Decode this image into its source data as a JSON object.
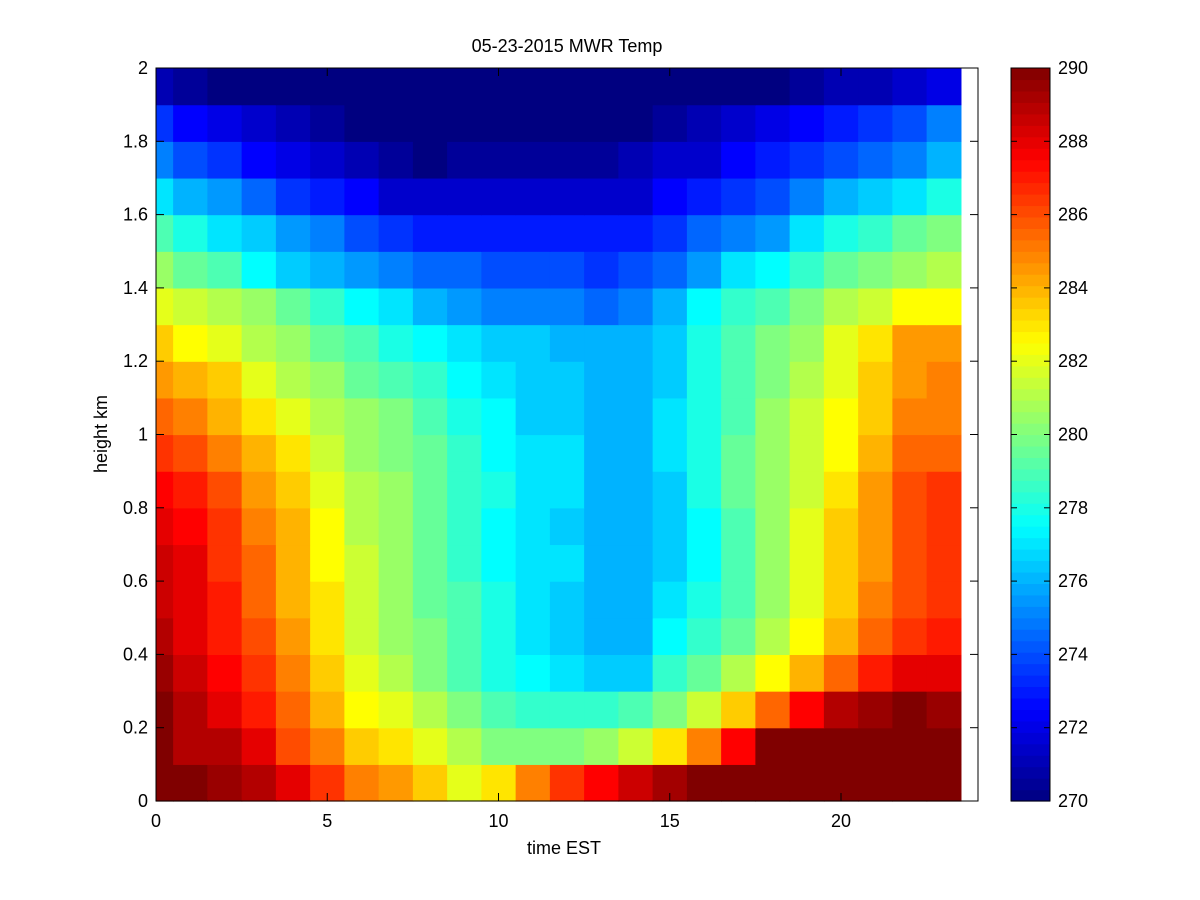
{
  "chart_data": {
    "type": "heatmap",
    "title": "05-23-2015 MWR Temp",
    "xlabel": "time EST",
    "ylabel": "height km",
    "xlim": [
      0,
      24
    ],
    "ylim": [
      0,
      2
    ],
    "x_ticks": [
      "0",
      "5",
      "10",
      "15",
      "20"
    ],
    "y_ticks": [
      "0",
      "0.2",
      "0.4",
      "0.6",
      "0.8",
      "1",
      "1.2",
      "1.4",
      "1.6",
      "1.8",
      "2"
    ],
    "colorbar": {
      "colormap": "jet",
      "range": [
        270,
        290
      ],
      "ticks": [
        "270",
        "272",
        "274",
        "276",
        "278",
        "280",
        "282",
        "284",
        "286",
        "288",
        "290"
      ]
    },
    "x": [
      0,
      1,
      2,
      3,
      4,
      5,
      6,
      7,
      8,
      9,
      10,
      11,
      12,
      13,
      14,
      15,
      16,
      17,
      18,
      19,
      20,
      21,
      22,
      23
    ],
    "y": [
      0.05,
      0.15,
      0.25,
      0.35,
      0.45,
      0.55,
      0.65,
      0.75,
      0.85,
      0.95,
      1.05,
      1.15,
      1.25,
      1.35,
      1.45,
      1.55,
      1.65,
      1.75,
      1.85,
      1.95
    ],
    "z": [
      [
        290,
        290,
        289.5,
        289,
        288,
        286.5,
        285,
        284.5,
        283.5,
        282,
        283,
        285,
        286.5,
        287.5,
        288.5,
        289.3,
        290,
        290,
        290,
        290,
        290,
        290,
        290,
        290
      ],
      [
        290,
        289,
        289,
        288,
        286,
        285,
        283.5,
        283,
        282,
        281,
        280,
        280,
        280,
        280.5,
        281.5,
        283,
        285,
        287.5,
        290,
        290,
        290,
        290,
        290,
        290
      ],
      [
        290,
        289,
        288,
        287,
        285.5,
        284,
        282.5,
        282,
        281,
        280,
        279,
        278.5,
        278.5,
        278.5,
        279,
        280,
        281.5,
        283.5,
        285.5,
        287.5,
        289,
        289.5,
        290,
        289.5
      ],
      [
        289.5,
        288.5,
        287.5,
        286.5,
        285,
        283.5,
        282,
        281,
        280,
        279,
        278,
        277.5,
        277,
        276.5,
        276.5,
        278.5,
        279.5,
        281,
        282.5,
        284,
        285.5,
        287,
        288,
        288
      ],
      [
        289,
        288,
        287,
        286,
        284.5,
        283,
        281.5,
        280.5,
        280,
        279,
        278,
        277,
        276.5,
        276,
        276,
        277.5,
        278.5,
        279.5,
        281,
        282.5,
        284,
        285.5,
        286.5,
        287
      ],
      [
        288.5,
        288,
        287,
        285.5,
        284,
        283,
        281.5,
        280.5,
        279.5,
        279,
        278,
        277,
        276.5,
        276,
        276,
        277,
        278,
        279,
        280.5,
        282,
        283.5,
        285,
        286,
        286.5
      ],
      [
        288.5,
        288,
        286.5,
        285.5,
        284,
        282.5,
        281.5,
        280.5,
        279.5,
        278.5,
        277.5,
        277,
        277,
        276,
        276,
        276.5,
        277.5,
        279,
        280.5,
        282,
        283.5,
        284.5,
        286,
        286.5
      ],
      [
        288,
        287.5,
        286.5,
        285,
        284,
        282.5,
        281,
        280.5,
        279.5,
        278.5,
        277.5,
        277,
        276.5,
        276,
        276,
        276.5,
        277.5,
        279,
        280.5,
        282,
        283.5,
        284.5,
        286,
        286.5
      ],
      [
        287.5,
        287,
        286,
        284.5,
        283.5,
        282,
        281,
        280.5,
        279.5,
        278.5,
        278,
        277,
        277,
        276,
        276,
        276.5,
        278,
        279.5,
        280.5,
        281.5,
        283,
        284.5,
        286,
        286.5
      ],
      [
        286.5,
        286,
        285,
        284,
        283,
        281.5,
        280.5,
        280,
        279.5,
        278.5,
        277.5,
        277,
        277,
        276,
        276,
        277,
        278,
        279.5,
        280.5,
        281.5,
        282.5,
        284,
        285.5,
        285.5
      ],
      [
        285.5,
        285,
        284,
        283,
        282,
        281,
        280.5,
        280,
        279,
        278,
        277.5,
        276.5,
        276.5,
        276,
        276,
        277,
        278,
        279,
        280.5,
        281.5,
        282.5,
        283.5,
        285,
        285
      ],
      [
        284.5,
        284,
        283.5,
        282,
        281,
        280.5,
        279.5,
        279,
        278.5,
        277.5,
        277,
        276.5,
        276.5,
        276,
        276,
        276.5,
        278,
        279,
        280,
        281,
        282,
        283.5,
        284.5,
        285
      ],
      [
        283.5,
        282.5,
        282,
        281,
        280.5,
        279.5,
        279,
        278,
        277.5,
        277,
        276.5,
        276.5,
        276,
        276,
        276,
        276.5,
        278,
        279,
        280,
        280.5,
        282,
        283,
        284.5,
        284.5
      ],
      [
        282,
        281.5,
        281,
        280.5,
        279.5,
        278.5,
        277.5,
        277,
        276,
        275.5,
        275,
        275,
        275,
        274.5,
        275,
        276,
        277.5,
        278.5,
        279,
        280,
        281,
        281.5,
        282.5,
        282.5
      ],
      [
        280.5,
        279.5,
        279,
        277.5,
        276.5,
        276,
        275.5,
        275,
        274.5,
        274.5,
        274,
        274,
        274,
        273.5,
        274,
        274.5,
        275.5,
        277,
        277.5,
        278.5,
        279.5,
        280,
        280.5,
        281
      ],
      [
        279,
        278,
        277,
        276.5,
        275.5,
        275,
        274,
        273.5,
        273,
        273,
        273,
        273,
        273,
        273,
        273,
        273.5,
        274.5,
        275,
        275.5,
        277,
        278,
        278.5,
        279.5,
        280
      ],
      [
        277,
        276,
        275.5,
        274.5,
        273.5,
        273,
        272.5,
        271.5,
        271.5,
        271.5,
        271.5,
        271.5,
        271.5,
        271.5,
        271.5,
        272.5,
        273,
        273.5,
        274,
        275,
        276,
        276.5,
        277,
        278
      ],
      [
        275,
        274,
        273.5,
        272.5,
        272,
        271.5,
        271,
        270.5,
        270,
        270.5,
        270.5,
        270.5,
        270.5,
        270.5,
        271,
        271.5,
        271.5,
        272.5,
        273,
        273.5,
        274,
        274.5,
        275,
        276
      ],
      [
        273.5,
        272.5,
        272,
        271.5,
        271,
        270.5,
        270,
        269.5,
        269.5,
        269.5,
        269.5,
        270,
        270,
        270,
        270,
        270.5,
        271,
        271.5,
        272,
        272.5,
        273,
        273.5,
        274,
        275
      ],
      [
        271,
        270.5,
        270,
        270,
        269.5,
        269.5,
        269.5,
        269.5,
        269.5,
        269.5,
        269.5,
        269.5,
        269.5,
        269.5,
        269.5,
        269.5,
        270,
        270,
        270,
        270.5,
        271,
        271,
        271.5,
        272
      ]
    ]
  }
}
